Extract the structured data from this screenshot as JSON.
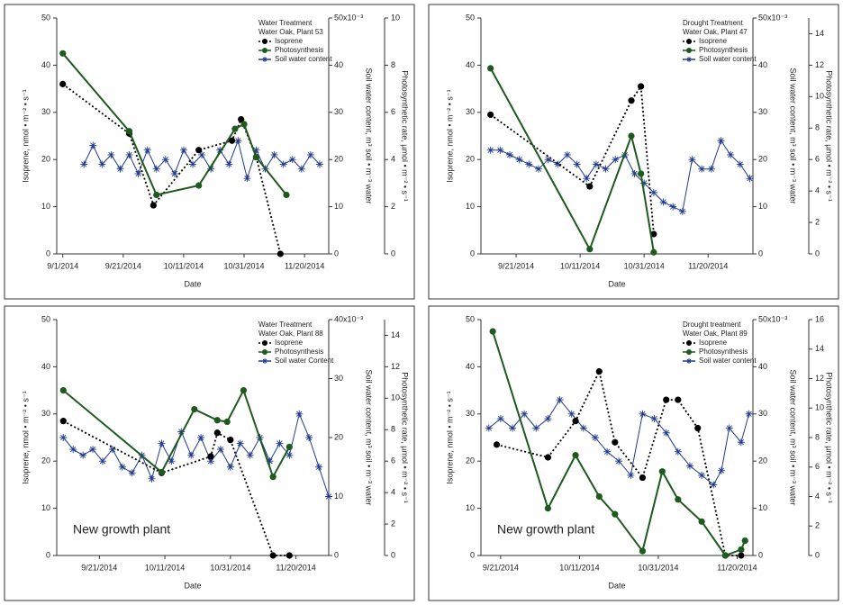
{
  "chart_data": [
    {
      "type": "line",
      "legend_title": [
        "Water Treatment",
        "Water Oak, Plant 53"
      ],
      "x_label": "Date",
      "y_label": "Isoprene, nmol • m⁻² • s⁻¹",
      "y2_label": "Soil water content, m³ soil • m⁻³ water",
      "y3_label": "Photosynthetic rate, µmol • m⁻² • s⁻¹",
      "xlim": [
        "2014-08-30",
        "2014-11-28"
      ],
      "xticks": [
        {
          "value": "2014-09-01",
          "label": "9/1/2014"
        },
        {
          "value": "2014-09-21",
          "label": "9/21/2014"
        },
        {
          "value": "2014-10-11",
          "label": "10/11/2014"
        },
        {
          "value": "2014-10-31",
          "label": "10/31/2014"
        },
        {
          "value": "2014-11-20",
          "label": "11/20/2014"
        }
      ],
      "ylim": [
        0,
        50
      ],
      "yticks": [
        0,
        10,
        20,
        30,
        40,
        50
      ],
      "y2lim": [
        0,
        50
      ],
      "y2ticks": [
        0,
        10,
        20,
        30,
        40,
        {
          "value": 50,
          "label": "50x10⁻³"
        }
      ],
      "y3lim": [
        0,
        10
      ],
      "y3ticks": [
        0,
        2,
        4,
        6,
        8,
        10
      ],
      "series": [
        {
          "name": "Isoprene",
          "color": "#000000",
          "style": "dotted",
          "marker": "circle",
          "axis": "y",
          "x": [
            "2014-09-01",
            "2014-09-23",
            "2014-10-01",
            "2014-10-16",
            "2014-10-27",
            "2014-10-30",
            "2014-11-04",
            "2014-11-12"
          ],
          "values": [
            36,
            25.5,
            10.3,
            22,
            24,
            28.5,
            20.5,
            0
          ]
        },
        {
          "name": "Photosynthesis",
          "color": "#1e5a1e",
          "style": "solid",
          "marker": "circle",
          "axis": "y3",
          "x": [
            "2014-09-01",
            "2014-09-23",
            "2014-10-02",
            "2014-10-16",
            "2014-10-28",
            "2014-10-31",
            "2014-11-04",
            "2014-11-14"
          ],
          "values": [
            8.5,
            5.2,
            2.5,
            2.9,
            5.3,
            5.5,
            4.1,
            2.5
          ]
        },
        {
          "name": "Soil water content",
          "color": "#1f3a8c",
          "style": "solid",
          "marker": "asterisk",
          "axis": "y2",
          "x": [
            "2014-09-08",
            "2014-09-11",
            "2014-09-14",
            "2014-09-17",
            "2014-09-20",
            "2014-09-23",
            "2014-09-26",
            "2014-09-29",
            "2014-10-02",
            "2014-10-05",
            "2014-10-08",
            "2014-10-11",
            "2014-10-14",
            "2014-10-17",
            "2014-10-20",
            "2014-10-23",
            "2014-10-26",
            "2014-10-29",
            "2014-11-01",
            "2014-11-04",
            "2014-11-07",
            "2014-11-10",
            "2014-11-13",
            "2014-11-16",
            "2014-11-19",
            "2014-11-22",
            "2014-11-25"
          ],
          "values": [
            19,
            23,
            19,
            21,
            18,
            21,
            17,
            22,
            18,
            20,
            17,
            22,
            19,
            21,
            18,
            22,
            19,
            24,
            16,
            22,
            18,
            21,
            19,
            20,
            18,
            21,
            19
          ]
        }
      ]
    },
    {
      "type": "line",
      "legend_title": [
        "Drought Treatment",
        "Water Oak, Plant 47"
      ],
      "x_label": "Date",
      "y_label": "Isoprene, nmol • m⁻² • s⁻¹",
      "y2_label": "Soil water content, m³ soil • m⁻³ water",
      "y3_label": "Photosynthetic rate, µmol • m⁻² • s⁻¹",
      "xlim": [
        "2014-09-10",
        "2014-12-04"
      ],
      "xticks": [
        {
          "value": "2014-09-21",
          "label": "9/21/2014"
        },
        {
          "value": "2014-10-11",
          "label": "10/11/2014"
        },
        {
          "value": "2014-10-31",
          "label": "10/31/2014"
        },
        {
          "value": "2014-11-20",
          "label": "11/20/2014"
        }
      ],
      "ylim": [
        0,
        50
      ],
      "yticks": [
        0,
        10,
        20,
        30,
        40,
        50
      ],
      "y2lim": [
        0,
        50
      ],
      "y2ticks": [
        0,
        10,
        20,
        30,
        40,
        {
          "value": 50,
          "label": "50x10⁻³"
        }
      ],
      "y3lim": [
        0,
        15
      ],
      "y3ticks": [
        0,
        2,
        4,
        6,
        8,
        10,
        12,
        14
      ],
      "series": [
        {
          "name": "Isoprene",
          "color": "#000000",
          "style": "dotted",
          "marker": "circle",
          "axis": "y",
          "x": [
            "2014-09-13",
            "2014-10-14",
            "2014-10-27",
            "2014-10-30",
            "2014-11-03"
          ],
          "values": [
            29.5,
            14.3,
            32.5,
            35.5,
            4.2
          ]
        },
        {
          "name": "Photosynthesis",
          "color": "#1e5a1e",
          "style": "solid",
          "marker": "circle",
          "axis": "y3",
          "x": [
            "2014-09-13",
            "2014-10-14",
            "2014-10-27",
            "2014-10-30",
            "2014-11-03"
          ],
          "values": [
            11.8,
            0.3,
            7.5,
            5.1,
            0.1
          ]
        },
        {
          "name": "Soil water content",
          "color": "#1f3a8c",
          "style": "solid",
          "marker": "asterisk",
          "axis": "y2",
          "x": [
            "2014-09-13",
            "2014-09-16",
            "2014-09-19",
            "2014-09-22",
            "2014-09-25",
            "2014-09-28",
            "2014-10-01",
            "2014-10-04",
            "2014-10-07",
            "2014-10-10",
            "2014-10-13",
            "2014-10-16",
            "2014-10-19",
            "2014-10-22",
            "2014-10-25",
            "2014-10-28",
            "2014-10-31",
            "2014-11-03",
            "2014-11-06",
            "2014-11-09",
            "2014-11-12",
            "2014-11-15",
            "2014-11-18",
            "2014-11-21",
            "2014-11-24",
            "2014-11-27",
            "2014-11-30",
            "2014-12-03"
          ],
          "values": [
            22,
            22,
            21,
            20,
            19,
            18,
            20,
            19,
            21,
            19,
            16,
            19,
            18,
            20,
            21,
            17,
            15,
            13,
            11,
            10,
            9,
            20,
            18,
            18,
            24,
            21,
            19,
            16
          ]
        }
      ]
    },
    {
      "type": "line",
      "legend_title": [
        "Water Treatment",
        "Water Oak, Plant 88"
      ],
      "annotation": "New growth plant",
      "x_label": "Date",
      "y_label": "Isoprene, nmol • m⁻² • s⁻¹",
      "y2_label": "Soil water content, m³ soil • m⁻³ water",
      "y3_label": "Photosynthetic rate, µmol • m⁻² • s⁻¹",
      "xlim": [
        "2014-09-08",
        "2014-11-30"
      ],
      "xticks": [
        {
          "value": "2014-09-21",
          "label": "9/21/2014"
        },
        {
          "value": "2014-10-11",
          "label": "10/11/2014"
        },
        {
          "value": "2014-10-31",
          "label": "10/31/2014"
        },
        {
          "value": "2014-11-20",
          "label": "11/20/2014"
        }
      ],
      "ylim": [
        0,
        50
      ],
      "yticks": [
        0,
        10,
        20,
        30,
        40,
        50
      ],
      "y2lim": [
        0,
        40
      ],
      "y2ticks": [
        0,
        10,
        20,
        30,
        {
          "value": 40,
          "label": "40x10⁻³"
        }
      ],
      "y3lim": [
        0,
        15
      ],
      "y3ticks": [
        0,
        2,
        4,
        6,
        8,
        10,
        12,
        14
      ],
      "series": [
        {
          "name": "Isoprene",
          "color": "#000000",
          "style": "dotted",
          "marker": "circle",
          "axis": "y",
          "x": [
            "2014-09-10",
            "2014-10-10",
            "2014-10-25",
            "2014-10-27",
            "2014-10-31",
            "2014-11-13",
            "2014-11-18"
          ],
          "values": [
            28.5,
            17.5,
            21,
            26,
            24.5,
            0,
            0
          ]
        },
        {
          "name": "Photosynthesis",
          "color": "#1e5a1e",
          "style": "solid",
          "marker": "circle",
          "axis": "y3",
          "x": [
            "2014-09-10",
            "2014-10-10",
            "2014-10-20",
            "2014-10-27",
            "2014-10-30",
            "2014-11-04",
            "2014-11-13",
            "2014-11-18"
          ],
          "values": [
            10.5,
            5.3,
            9.3,
            8.6,
            8.5,
            10.5,
            5,
            6.9
          ]
        },
        {
          "name": "Soil water Content",
          "color": "#1f3a8c",
          "style": "solid",
          "marker": "asterisk",
          "axis": "y2",
          "x": [
            "2014-09-10",
            "2014-09-13",
            "2014-09-16",
            "2014-09-19",
            "2014-09-22",
            "2014-09-25",
            "2014-09-28",
            "2014-10-01",
            "2014-10-04",
            "2014-10-07",
            "2014-10-10",
            "2014-10-13",
            "2014-10-16",
            "2014-10-19",
            "2014-10-22",
            "2014-10-25",
            "2014-10-28",
            "2014-10-31",
            "2014-11-03",
            "2014-11-06",
            "2014-11-09",
            "2014-11-12",
            "2014-11-15",
            "2014-11-18",
            "2014-11-21",
            "2014-11-24",
            "2014-11-27",
            "2014-11-30"
          ],
          "values": [
            20,
            18,
            17,
            18,
            16,
            18,
            15,
            14,
            17,
            13,
            19,
            16,
            21,
            17,
            20,
            16,
            18,
            15,
            19,
            17,
            20,
            16,
            19,
            17,
            24,
            20,
            15,
            10
          ]
        }
      ]
    },
    {
      "type": "line",
      "legend_title": [
        "Drought treatment",
        "Water Oak, Plant 89"
      ],
      "annotation": "New growth plant",
      "x_label": "Date",
      "y_label": "Isoprene, nmol • m⁻² • s⁻¹",
      "y2_label": "Soil water content, m³ soil • m⁻³ water",
      "y3_label": "Photosynthetic rate, µmol • m⁻² • s⁻¹",
      "xlim": [
        "2014-09-16",
        "2014-11-24"
      ],
      "xticks": [
        {
          "value": "2014-09-21",
          "label": "9/21/2014"
        },
        {
          "value": "2014-10-11",
          "label": "10/11/2014"
        },
        {
          "value": "2014-10-31",
          "label": "10/31/2014"
        },
        {
          "value": "2014-11-20",
          "label": "11/20/2014"
        }
      ],
      "ylim": [
        0,
        50
      ],
      "yticks": [
        0,
        10,
        20,
        30,
        40,
        50
      ],
      "y2lim": [
        0,
        50
      ],
      "y2ticks": [
        0,
        10,
        20,
        30,
        40,
        {
          "value": 50,
          "label": "50x10⁻³"
        }
      ],
      "y3lim": [
        0,
        16
      ],
      "y3ticks": [
        0,
        2,
        4,
        6,
        8,
        10,
        12,
        14,
        16
      ],
      "series": [
        {
          "name": "Isoprene",
          "color": "#000000",
          "style": "dotted",
          "marker": "circle",
          "axis": "y",
          "x": [
            "2014-09-20",
            "2014-10-03",
            "2014-10-10",
            "2014-10-16",
            "2014-10-20",
            "2014-10-27",
            "2014-11-02",
            "2014-11-05",
            "2014-11-10",
            "2014-11-17",
            "2014-11-21"
          ],
          "values": [
            23.5,
            20.8,
            28.5,
            39,
            24,
            16.5,
            33,
            33,
            27,
            0,
            0
          ]
        },
        {
          "name": "Photosynthesis",
          "color": "#1e5a1e",
          "style": "solid",
          "marker": "circle",
          "axis": "y3",
          "x": [
            "2014-09-19",
            "2014-10-03",
            "2014-10-10",
            "2014-10-16",
            "2014-10-20",
            "2014-10-27",
            "2014-11-01",
            "2014-11-05",
            "2014-11-11",
            "2014-11-17",
            "2014-11-21",
            "2014-11-22"
          ],
          "values": [
            15.2,
            3.2,
            6.8,
            4,
            2.8,
            0.3,
            5.7,
            3.8,
            2.3,
            0,
            0.4,
            1
          ]
        },
        {
          "name": "Soil water content",
          "color": "#1f3a8c",
          "style": "solid",
          "marker": "asterisk",
          "axis": "y2",
          "x": [
            "2014-09-18",
            "2014-09-21",
            "2014-09-24",
            "2014-09-27",
            "2014-09-30",
            "2014-10-03",
            "2014-10-06",
            "2014-10-09",
            "2014-10-12",
            "2014-10-15",
            "2014-10-18",
            "2014-10-21",
            "2014-10-24",
            "2014-10-27",
            "2014-10-30",
            "2014-11-02",
            "2014-11-05",
            "2014-11-08",
            "2014-11-11",
            "2014-11-14",
            "2014-11-16",
            "2014-11-18",
            "2014-11-21",
            "2014-11-23"
          ],
          "values": [
            27,
            29,
            27,
            30,
            27,
            29,
            33,
            30,
            27,
            25,
            22,
            20,
            17,
            30,
            29,
            26,
            22,
            19,
            17,
            15,
            18,
            27,
            24,
            30
          ]
        }
      ]
    }
  ]
}
